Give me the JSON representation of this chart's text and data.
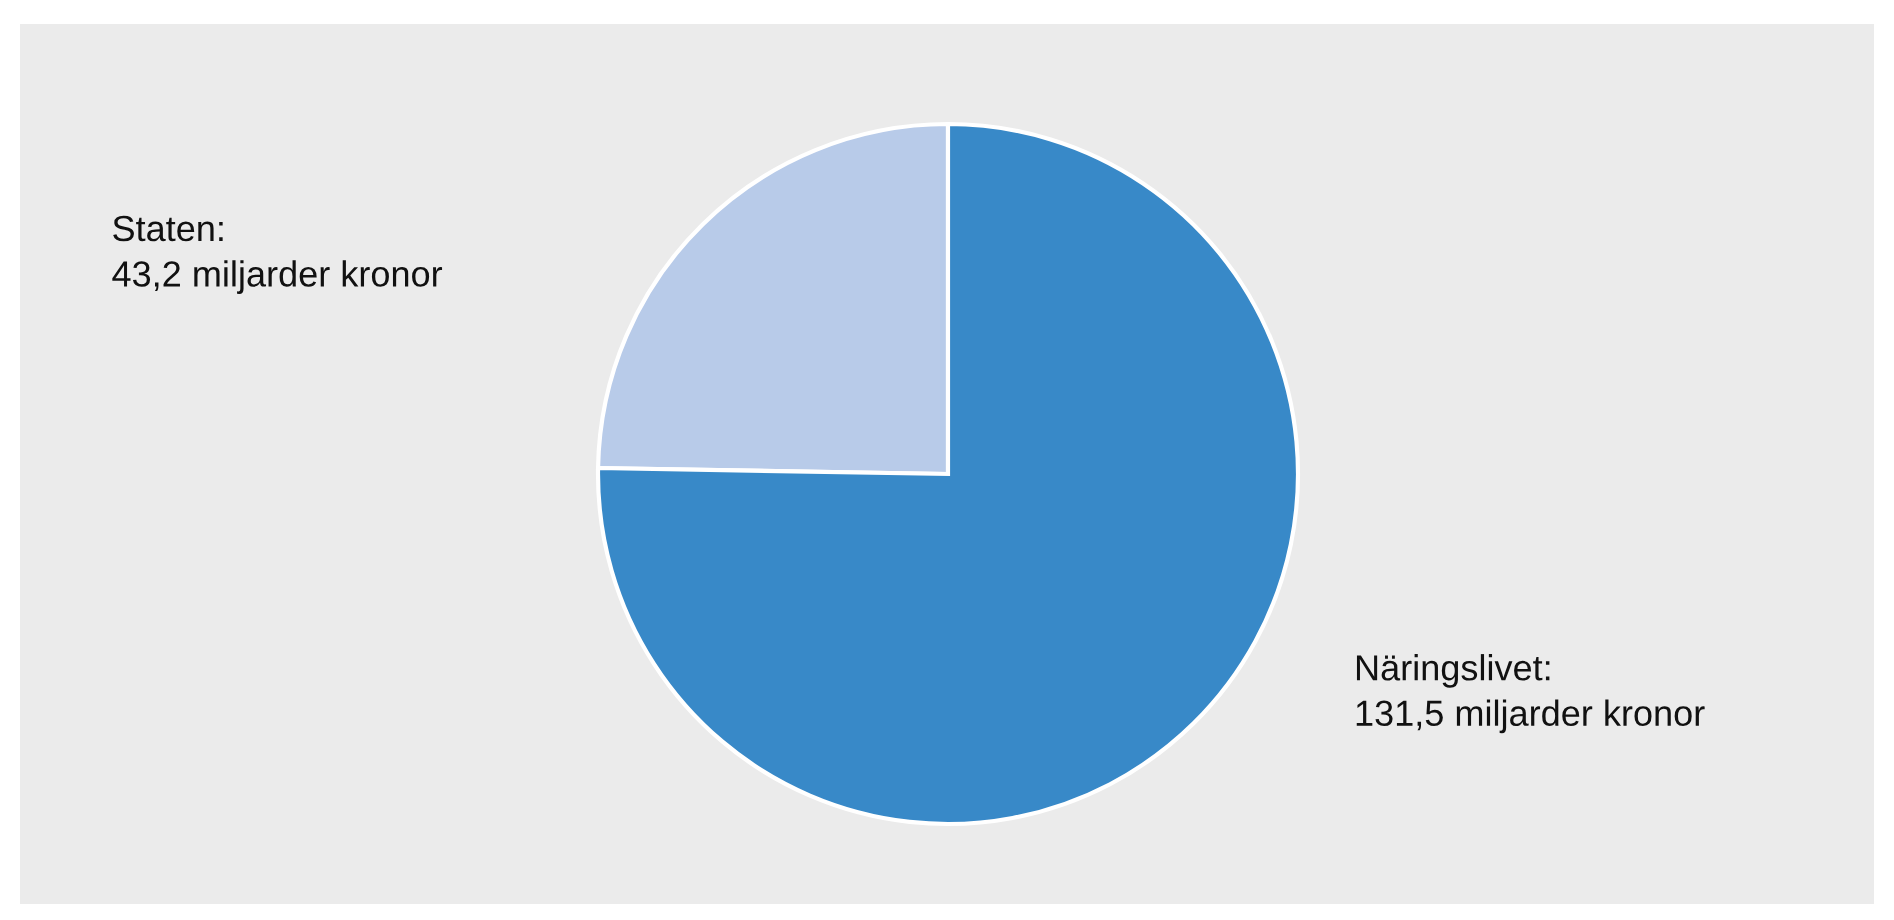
{
  "chart_data": {
    "type": "pie",
    "categories": [
      "Staten:\n43,2 miljarder kronor",
      "Näringslivet:\n131,5 miljarder kronor"
    ],
    "values": [
      43.2,
      131.5
    ],
    "colors": [
      "#b8cbe9",
      "#3889c8"
    ],
    "legend": false
  }
}
